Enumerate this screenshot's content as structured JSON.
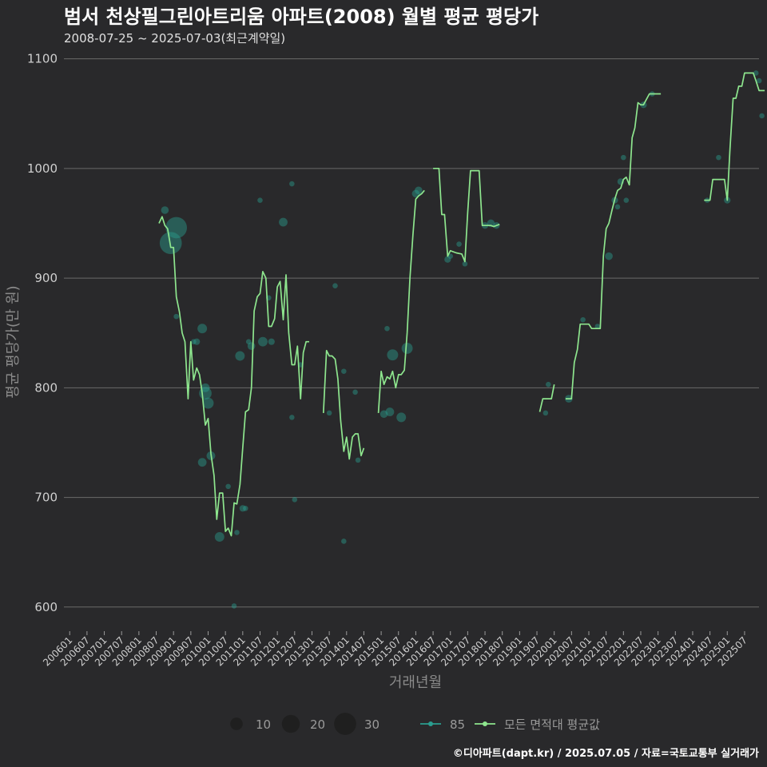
{
  "chart_data": {
    "type": "line",
    "title": "범서 천상필그린아트리움 아파트(2008) 월별 평균 평당가",
    "subtitle": "2008-07-25 ~ 2025-07-03(최근계약일)",
    "xlabel": "거래년월",
    "ylabel": "평균 평당가(만 원)",
    "ylim": [
      578,
      1107
    ],
    "yticks": [
      600,
      700,
      800,
      900,
      1000,
      1100
    ],
    "x_range": [
      2005.833,
      2025.917
    ],
    "xticks": [
      "200601",
      "200607",
      "200701",
      "200707",
      "200801",
      "200807",
      "200901",
      "200907",
      "201001",
      "201007",
      "201101",
      "201107",
      "201201",
      "201207",
      "201301",
      "201307",
      "201401",
      "201407",
      "201501",
      "201507",
      "201601",
      "201607",
      "201701",
      "201707",
      "201801",
      "201807",
      "201901",
      "201907",
      "202001",
      "202007",
      "202101",
      "202107",
      "202201",
      "202207",
      "202301",
      "202307",
      "202401",
      "202407",
      "202501",
      "202507"
    ],
    "series": [
      {
        "name": "모든 면적대 평균값",
        "color": "#8ee68e",
        "segments": [
          [
            [
              2008.58,
              950
            ],
            [
              2008.67,
              956
            ],
            [
              2008.75,
              948
            ],
            [
              2008.83,
              945
            ],
            [
              2008.92,
              928
            ],
            [
              2009.0,
              928
            ],
            [
              2009.08,
              883
            ],
            [
              2009.17,
              869
            ],
            [
              2009.25,
              850
            ],
            [
              2009.33,
              842
            ],
            [
              2009.42,
              790
            ],
            [
              2009.5,
              842
            ],
            [
              2009.58,
              807
            ],
            [
              2009.67,
              818
            ],
            [
              2009.75,
              812
            ],
            [
              2009.83,
              795
            ],
            [
              2009.92,
              766
            ],
            [
              2010.0,
              772
            ],
            [
              2010.08,
              740
            ],
            [
              2010.17,
              720
            ],
            [
              2010.25,
              680
            ],
            [
              2010.33,
              704
            ],
            [
              2010.42,
              704
            ],
            [
              2010.5,
              669
            ],
            [
              2010.58,
              672
            ],
            [
              2010.67,
              665
            ],
            [
              2010.75,
              695
            ],
            [
              2010.83,
              694
            ],
            [
              2010.92,
              712
            ],
            [
              2011.0,
              745
            ],
            [
              2011.08,
              778
            ],
            [
              2011.17,
              780
            ],
            [
              2011.25,
              800
            ],
            [
              2011.33,
              870
            ],
            [
              2011.42,
              883
            ],
            [
              2011.5,
              886
            ],
            [
              2011.58,
              906
            ],
            [
              2011.67,
              900
            ],
            [
              2011.75,
              856
            ],
            [
              2011.83,
              856
            ],
            [
              2011.92,
              863
            ],
            [
              2012.0,
              892
            ],
            [
              2012.08,
              897
            ],
            [
              2012.17,
              862
            ],
            [
              2012.25,
              903
            ],
            [
              2012.33,
              850
            ],
            [
              2012.42,
              821
            ],
            [
              2012.5,
              821
            ],
            [
              2012.58,
              838
            ],
            [
              2012.67,
              790
            ],
            [
              2012.75,
              832
            ],
            [
              2012.83,
              842
            ],
            [
              2012.92,
              842
            ]
          ],
          [
            [
              2013.33,
              777
            ],
            [
              2013.42,
              834
            ],
            [
              2013.5,
              829
            ],
            [
              2013.58,
              829
            ],
            [
              2013.67,
              826
            ],
            [
              2013.75,
              808
            ],
            [
              2013.83,
              770
            ],
            [
              2013.92,
              742
            ],
            [
              2014.0,
              755
            ],
            [
              2014.08,
              735
            ],
            [
              2014.17,
              755
            ],
            [
              2014.25,
              758
            ],
            [
              2014.33,
              758
            ],
            [
              2014.42,
              738
            ],
            [
              2014.5,
              745
            ]
          ],
          [
            [
              2014.92,
              777
            ],
            [
              2015.0,
              815
            ],
            [
              2015.08,
              803
            ],
            [
              2015.17,
              810
            ],
            [
              2015.25,
              808
            ],
            [
              2015.33,
              815
            ],
            [
              2015.42,
              800
            ],
            [
              2015.5,
              812
            ],
            [
              2015.58,
              812
            ],
            [
              2015.67,
              816
            ],
            [
              2015.75,
              850
            ],
            [
              2015.83,
              900
            ],
            [
              2015.92,
              940
            ],
            [
              2016.0,
              972
            ],
            [
              2016.08,
              975
            ],
            [
              2016.17,
              977
            ],
            [
              2016.25,
              980
            ]
          ],
          [
            [
              2016.5,
              1000
            ],
            [
              2016.67,
              1000
            ],
            [
              2016.75,
              958
            ],
            [
              2016.83,
              958
            ],
            [
              2016.92,
              920
            ],
            [
              2017.0,
              925
            ],
            [
              2017.17,
              923
            ],
            [
              2017.33,
              922
            ],
            [
              2017.42,
              915
            ],
            [
              2017.5,
              960
            ],
            [
              2017.58,
              998
            ],
            [
              2017.83,
              998
            ],
            [
              2017.92,
              948
            ],
            [
              2018.17,
              948
            ],
            [
              2018.25,
              947
            ],
            [
              2018.42,
              949
            ]
          ],
          [
            [
              2019.58,
              778
            ],
            [
              2019.67,
              790
            ],
            [
              2019.92,
              790
            ],
            [
              2020.0,
              803
            ]
          ],
          [
            [
              2020.33,
              790
            ],
            [
              2020.5,
              790
            ],
            [
              2020.58,
              823
            ],
            [
              2020.67,
              835
            ],
            [
              2020.75,
              858
            ],
            [
              2021.0,
              858
            ],
            [
              2021.08,
              854
            ],
            [
              2021.33,
              854
            ],
            [
              2021.42,
              920
            ],
            [
              2021.5,
              945
            ],
            [
              2021.58,
              950
            ],
            [
              2021.67,
              962
            ],
            [
              2021.75,
              972
            ],
            [
              2021.83,
              980
            ],
            [
              2021.92,
              982
            ],
            [
              2022.0,
              990
            ],
            [
              2022.08,
              992
            ],
            [
              2022.17,
              985
            ],
            [
              2022.25,
              1028
            ],
            [
              2022.33,
              1037
            ],
            [
              2022.42,
              1060
            ],
            [
              2022.5,
              1058
            ],
            [
              2022.58,
              1058
            ],
            [
              2022.75,
              1068
            ],
            [
              2023.08,
              1068
            ]
          ],
          [
            [
              2024.33,
              971
            ],
            [
              2024.5,
              971
            ],
            [
              2024.58,
              990
            ],
            [
              2024.92,
              990
            ],
            [
              2025.0,
              971
            ],
            [
              2025.08,
              1018
            ],
            [
              2025.17,
              1064
            ],
            [
              2025.25,
              1064
            ],
            [
              2025.33,
              1075
            ],
            [
              2025.42,
              1075
            ],
            [
              2025.5,
              1087
            ],
            [
              2025.75,
              1087
            ],
            [
              2025.83,
              1080
            ],
            [
              2025.92,
              1071
            ],
            [
              2026.08,
              1071
            ]
          ]
        ]
      }
    ],
    "scatter": {
      "name": "85",
      "color": "#2a9d8f",
      "points": [
        {
          "x": 2008.75,
          "y": 962,
          "n": 4
        },
        {
          "x": 2008.92,
          "y": 932,
          "n": 30
        },
        {
          "x": 2009.08,
          "y": 946,
          "n": 28
        },
        {
          "x": 2009.08,
          "y": 865,
          "n": 2
        },
        {
          "x": 2009.58,
          "y": 842,
          "n": 2
        },
        {
          "x": 2009.67,
          "y": 842,
          "n": 3
        },
        {
          "x": 2009.83,
          "y": 854,
          "n": 6
        },
        {
          "x": 2009.92,
          "y": 800,
          "n": 5
        },
        {
          "x": 2010.0,
          "y": 786,
          "n": 8
        },
        {
          "x": 2010.08,
          "y": 738,
          "n": 5
        },
        {
          "x": 2009.83,
          "y": 732,
          "n": 5
        },
        {
          "x": 2009.92,
          "y": 795,
          "n": 10
        },
        {
          "x": 2010.33,
          "y": 664,
          "n": 6
        },
        {
          "x": 2010.58,
          "y": 710,
          "n": 2
        },
        {
          "x": 2010.75,
          "y": 601,
          "n": 2
        },
        {
          "x": 2010.83,
          "y": 668,
          "n": 2
        },
        {
          "x": 2011.0,
          "y": 690,
          "n": 3
        },
        {
          "x": 2011.08,
          "y": 690,
          "n": 2
        },
        {
          "x": 2010.92,
          "y": 829,
          "n": 6
        },
        {
          "x": 2011.17,
          "y": 842,
          "n": 2
        },
        {
          "x": 2011.25,
          "y": 838,
          "n": 4
        },
        {
          "x": 2011.5,
          "y": 971,
          "n": 2
        },
        {
          "x": 2011.58,
          "y": 842,
          "n": 6
        },
        {
          "x": 2011.75,
          "y": 882,
          "n": 2
        },
        {
          "x": 2011.83,
          "y": 842,
          "n": 3
        },
        {
          "x": 2012.17,
          "y": 951,
          "n": 5
        },
        {
          "x": 2012.42,
          "y": 773,
          "n": 2
        },
        {
          "x": 2012.42,
          "y": 986,
          "n": 2
        },
        {
          "x": 2012.5,
          "y": 698,
          "n": 2
        },
        {
          "x": 2012.67,
          "y": 821,
          "n": 2
        },
        {
          "x": 2013.5,
          "y": 777,
          "n": 2
        },
        {
          "x": 2013.67,
          "y": 893,
          "n": 2
        },
        {
          "x": 2013.92,
          "y": 815,
          "n": 2
        },
        {
          "x": 2013.92,
          "y": 660,
          "n": 2
        },
        {
          "x": 2014.25,
          "y": 796,
          "n": 2
        },
        {
          "x": 2014.33,
          "y": 734,
          "n": 2
        },
        {
          "x": 2015.08,
          "y": 776,
          "n": 4
        },
        {
          "x": 2015.17,
          "y": 854,
          "n": 2
        },
        {
          "x": 2015.25,
          "y": 778,
          "n": 5
        },
        {
          "x": 2015.33,
          "y": 830,
          "n": 8
        },
        {
          "x": 2015.58,
          "y": 773,
          "n": 6
        },
        {
          "x": 2015.75,
          "y": 836,
          "n": 8
        },
        {
          "x": 2016.0,
          "y": 977,
          "n": 4
        },
        {
          "x": 2016.08,
          "y": 980,
          "n": 4
        },
        {
          "x": 2016.92,
          "y": 917,
          "n": 3
        },
        {
          "x": 2017.0,
          "y": 920,
          "n": 2
        },
        {
          "x": 2017.25,
          "y": 931,
          "n": 2
        },
        {
          "x": 2017.42,
          "y": 913,
          "n": 2
        },
        {
          "x": 2018.0,
          "y": 948,
          "n": 3
        },
        {
          "x": 2018.17,
          "y": 950,
          "n": 4
        },
        {
          "x": 2018.33,
          "y": 948,
          "n": 3
        },
        {
          "x": 2019.75,
          "y": 777,
          "n": 2
        },
        {
          "x": 2019.83,
          "y": 803,
          "n": 2
        },
        {
          "x": 2020.42,
          "y": 790,
          "n": 4
        },
        {
          "x": 2020.83,
          "y": 862,
          "n": 2
        },
        {
          "x": 2021.25,
          "y": 856,
          "n": 2
        },
        {
          "x": 2021.58,
          "y": 920,
          "n": 4
        },
        {
          "x": 2021.75,
          "y": 971,
          "n": 3
        },
        {
          "x": 2021.83,
          "y": 965,
          "n": 2
        },
        {
          "x": 2021.92,
          "y": 988,
          "n": 3
        },
        {
          "x": 2022.0,
          "y": 1010,
          "n": 2
        },
        {
          "x": 2022.08,
          "y": 971,
          "n": 2
        },
        {
          "x": 2022.58,
          "y": 1058,
          "n": 3
        },
        {
          "x": 2022.83,
          "y": 1068,
          "n": 2
        },
        {
          "x": 2024.42,
          "y": 971,
          "n": 2
        },
        {
          "x": 2024.75,
          "y": 1010,
          "n": 2
        },
        {
          "x": 2025.0,
          "y": 971,
          "n": 3
        },
        {
          "x": 2025.83,
          "y": 1087,
          "n": 2
        },
        {
          "x": 2025.92,
          "y": 1080,
          "n": 2
        },
        {
          "x": 2026.0,
          "y": 1048,
          "n": 2
        }
      ]
    },
    "size_legend": [
      {
        "label": "10",
        "n": 10
      },
      {
        "label": "20",
        "n": 20
      },
      {
        "label": "30",
        "n": 30
      }
    ],
    "color_legend": [
      {
        "label": "85",
        "kind": "scatter",
        "color": "#2a9d8f"
      },
      {
        "label": "모든 면적대 평균값",
        "kind": "line",
        "color": "#8ee68e"
      }
    ],
    "caption": "©디아파트(dapt.kr) / 2025.07.05 / 자료=국토교통부 실거래가"
  }
}
